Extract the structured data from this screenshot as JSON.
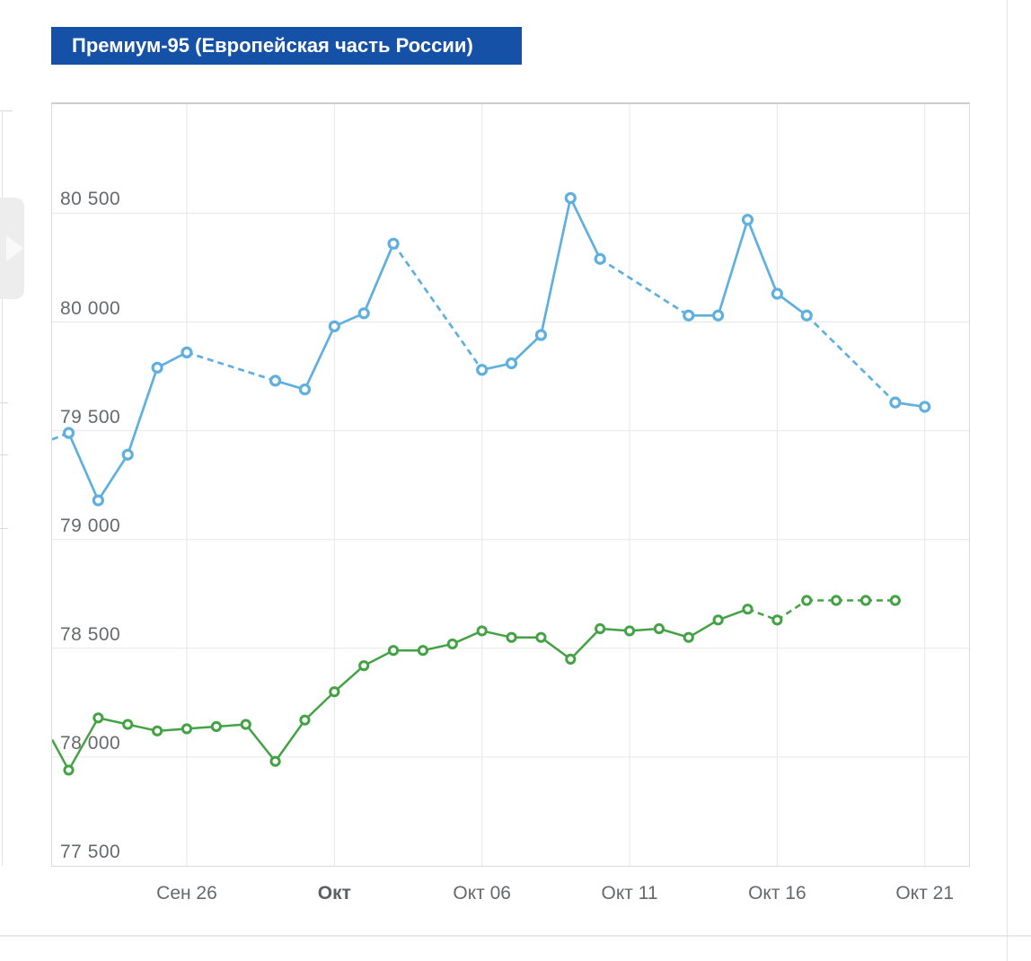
{
  "page": {
    "title_bar": {
      "label": "Премиум-95 (Европейская часть России)",
      "bg_color": "#1551a7",
      "text_color": "#ffffff"
    },
    "nav_arrow": {
      "direction": "right"
    }
  },
  "chart_data": {
    "type": "line",
    "title": "Премиум-95 (Европейская часть России)",
    "grid": true,
    "legend": "none",
    "colors": {
      "series_blue": "#5fafdf",
      "series_green": "#43a344",
      "gridline": "#e7e7e7"
    },
    "y_axis": {
      "min": 77500,
      "max": 81000,
      "tick_step": 500,
      "ticks": [
        {
          "value": 77500,
          "label": "77 500"
        },
        {
          "value": 78000,
          "label": "78 000"
        },
        {
          "value": 78500,
          "label": "78 500"
        },
        {
          "value": 79000,
          "label": "79 000"
        },
        {
          "value": 79500,
          "label": "79 500"
        },
        {
          "value": 80000,
          "label": "80 000"
        },
        {
          "value": 80500,
          "label": "80 500"
        }
      ]
    },
    "x_axis": {
      "ticks": [
        {
          "label": "Сен 26",
          "day_index": 4,
          "bold": false
        },
        {
          "label": "Окт",
          "day_index": 9,
          "bold": true
        },
        {
          "label": "Окт 06",
          "day_index": 14,
          "bold": false
        },
        {
          "label": "Окт 11",
          "day_index": 19,
          "bold": false
        },
        {
          "label": "Окт 16",
          "day_index": 24,
          "bold": false
        },
        {
          "label": "Окт 21",
          "day_index": 29,
          "bold": false
        }
      ]
    },
    "series": [
      {
        "name": "series-blue",
        "color": "#5fafdf",
        "marker": "ring",
        "marker_radius": 5,
        "marker_stroke": 3.2,
        "line_width": 2.7,
        "edge_entry": {
          "value": 79460,
          "dashed": true
        },
        "points": [
          {
            "label": "Сен 22",
            "day_index": 0,
            "value": 79490,
            "dashed_from_prev": false
          },
          {
            "label": "Сен 23",
            "day_index": 1,
            "value": 79180,
            "dashed_from_prev": false
          },
          {
            "label": "Сен 24",
            "day_index": 2,
            "value": 79390,
            "dashed_from_prev": false
          },
          {
            "label": "Сен 25",
            "day_index": 3,
            "value": 79790,
            "dashed_from_prev": false
          },
          {
            "label": "Сен 26",
            "day_index": 4,
            "value": 79860,
            "dashed_from_prev": false
          },
          {
            "label": "Сен 29",
            "day_index": 7,
            "value": 79730,
            "dashed_from_prev": true
          },
          {
            "label": "Сен 30",
            "day_index": 8,
            "value": 79690,
            "dashed_from_prev": false
          },
          {
            "label": "Окт 01",
            "day_index": 9,
            "value": 79980,
            "dashed_from_prev": false
          },
          {
            "label": "Окт 02",
            "day_index": 10,
            "value": 80040,
            "dashed_from_prev": false
          },
          {
            "label": "Окт 03",
            "day_index": 11,
            "value": 80360,
            "dashed_from_prev": false
          },
          {
            "label": "Окт 06",
            "day_index": 14,
            "value": 79780,
            "dashed_from_prev": true
          },
          {
            "label": "Окт 07",
            "day_index": 15,
            "value": 79810,
            "dashed_from_prev": false
          },
          {
            "label": "Окт 08",
            "day_index": 16,
            "value": 79940,
            "dashed_from_prev": false
          },
          {
            "label": "Окт 09",
            "day_index": 17,
            "value": 80570,
            "dashed_from_prev": false
          },
          {
            "label": "Окт 10",
            "day_index": 18,
            "value": 80290,
            "dashed_from_prev": false
          },
          {
            "label": "Окт 13",
            "day_index": 21,
            "value": 80030,
            "dashed_from_prev": true
          },
          {
            "label": "Окт 14",
            "day_index": 22,
            "value": 80030,
            "dashed_from_prev": false
          },
          {
            "label": "Окт 15",
            "day_index": 23,
            "value": 80470,
            "dashed_from_prev": false
          },
          {
            "label": "Окт 16",
            "day_index": 24,
            "value": 80130,
            "dashed_from_prev": false
          },
          {
            "label": "Окт 17",
            "day_index": 25,
            "value": 80030,
            "dashed_from_prev": false
          },
          {
            "label": "Окт 20",
            "day_index": 28,
            "value": 79630,
            "dashed_from_prev": true
          },
          {
            "label": "Окт 21",
            "day_index": 29,
            "value": 79610,
            "dashed_from_prev": false
          }
        ]
      },
      {
        "name": "series-green",
        "color": "#43a344",
        "marker": "ring",
        "marker_radius": 4.6,
        "marker_stroke": 3,
        "line_width": 2.5,
        "edge_entry": {
          "value": 78080,
          "dashed": false
        },
        "points": [
          {
            "label": "Сен 22",
            "day_index": 0,
            "value": 77940,
            "dashed_from_prev": false
          },
          {
            "label": "Сен 23",
            "day_index": 1,
            "value": 78180,
            "dashed_from_prev": false
          },
          {
            "label": "Сен 24",
            "day_index": 2,
            "value": 78150,
            "dashed_from_prev": false
          },
          {
            "label": "Сен 25",
            "day_index": 3,
            "value": 78120,
            "dashed_from_prev": false
          },
          {
            "label": "Сен 26",
            "day_index": 4,
            "value": 78130,
            "dashed_from_prev": false
          },
          {
            "label": "Сен 27",
            "day_index": 5,
            "value": 78140,
            "dashed_from_prev": false
          },
          {
            "label": "Сен 28",
            "day_index": 6,
            "value": 78150,
            "dashed_from_prev": false
          },
          {
            "label": "Сен 29",
            "day_index": 7,
            "value": 77980,
            "dashed_from_prev": false
          },
          {
            "label": "Сен 30",
            "day_index": 8,
            "value": 78170,
            "dashed_from_prev": false
          },
          {
            "label": "Окт 01",
            "day_index": 9,
            "value": 78300,
            "dashed_from_prev": false
          },
          {
            "label": "Окт 02",
            "day_index": 10,
            "value": 78420,
            "dashed_from_prev": false
          },
          {
            "label": "Окт 03",
            "day_index": 11,
            "value": 78490,
            "dashed_from_prev": false
          },
          {
            "label": "Окт 04",
            "day_index": 12,
            "value": 78490,
            "dashed_from_prev": false
          },
          {
            "label": "Окт 05",
            "day_index": 13,
            "value": 78520,
            "dashed_from_prev": false
          },
          {
            "label": "Окт 06",
            "day_index": 14,
            "value": 78580,
            "dashed_from_prev": false
          },
          {
            "label": "Окт 07",
            "day_index": 15,
            "value": 78550,
            "dashed_from_prev": false
          },
          {
            "label": "Окт 08",
            "day_index": 16,
            "value": 78550,
            "dashed_from_prev": false
          },
          {
            "label": "Окт 09",
            "day_index": 17,
            "value": 78450,
            "dashed_from_prev": false
          },
          {
            "label": "Окт 10",
            "day_index": 18,
            "value": 78590,
            "dashed_from_prev": false
          },
          {
            "label": "Окт 11",
            "day_index": 19,
            "value": 78580,
            "dashed_from_prev": false
          },
          {
            "label": "Окт 12",
            "day_index": 20,
            "value": 78590,
            "dashed_from_prev": false
          },
          {
            "label": "Окт 13",
            "day_index": 21,
            "value": 78550,
            "dashed_from_prev": false
          },
          {
            "label": "Окт 14",
            "day_index": 22,
            "value": 78630,
            "dashed_from_prev": false
          },
          {
            "label": "Окт 15",
            "day_index": 23,
            "value": 78680,
            "dashed_from_prev": false
          },
          {
            "label": "Окт 16",
            "day_index": 24,
            "value": 78630,
            "dashed_from_prev": true
          },
          {
            "label": "Окт 17",
            "day_index": 25,
            "value": 78720,
            "dashed_from_prev": true
          },
          {
            "label": "Окт 18",
            "day_index": 26,
            "value": 78720,
            "dashed_from_prev": true
          },
          {
            "label": "Окт 19",
            "day_index": 27,
            "value": 78720,
            "dashed_from_prev": true
          },
          {
            "label": "Окт 20",
            "day_index": 28,
            "value": 78720,
            "dashed_from_prev": true
          }
        ]
      }
    ]
  }
}
